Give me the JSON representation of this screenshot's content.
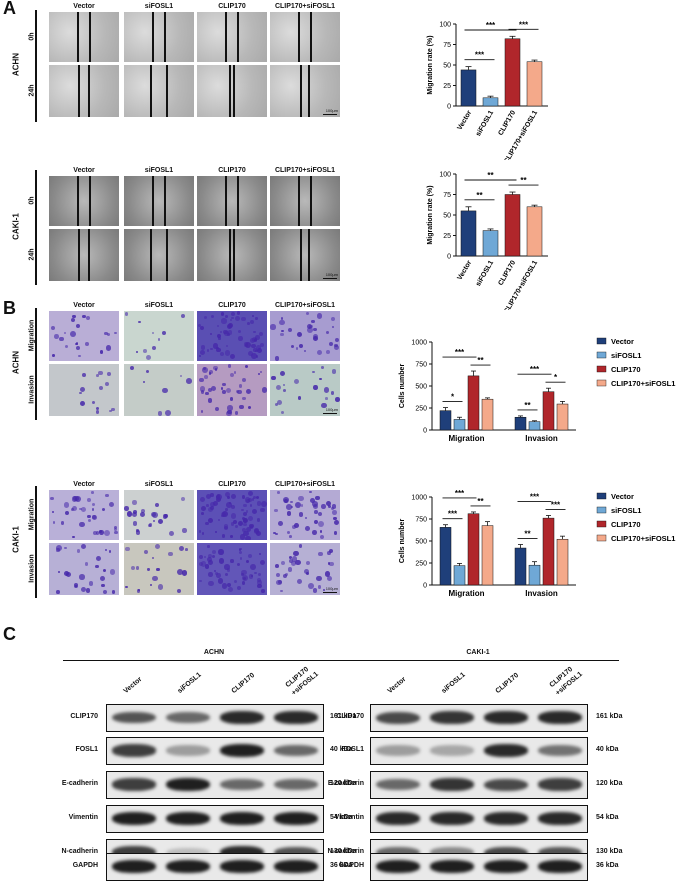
{
  "panels": {
    "A": {
      "letter": "A",
      "columns": [
        "Vector",
        "siFOSL1",
        "CLIP170",
        "CLIP170+siFOSL1"
      ],
      "time_rows": [
        "0h",
        "24h"
      ],
      "cell_lines": [
        "ACHN",
        "CAKI-1"
      ],
      "scale": "100μm"
    },
    "B": {
      "letter": "B",
      "columns": [
        "Vector",
        "siFOSL1",
        "CLIP170",
        "CLIP170+siFOSL1"
      ],
      "assay_rows": [
        "Migration",
        "Invasion"
      ],
      "cell_lines": [
        "ACHN",
        "CAKI-1"
      ],
      "scale": "100μm"
    },
    "C": {
      "letter": "C",
      "cell_lines": [
        "ACHN",
        "CAKI-1"
      ],
      "lanes": [
        "Vector",
        "siFOSL1",
        "CLIP170",
        "CLIP170\n+siFOSL1"
      ],
      "lane_line1": [
        "Vector",
        "siFOSL1",
        "CLIP170",
        "CLIP170"
      ],
      "lane_line2": [
        "",
        "",
        "",
        "+siFOSL1"
      ],
      "proteins": [
        {
          "name": "CLIP170",
          "kda": "161 kDa"
        },
        {
          "name": "FOSL1",
          "kda": "40 kDa"
        },
        {
          "name": "E-cadherin",
          "kda": "120 kDa"
        },
        {
          "name": "Vimentin",
          "kda": "54 kDa"
        },
        {
          "name": "N-cadherin",
          "kda": "130 kDa"
        },
        {
          "name": "GAPDH",
          "kda": "36 kDa"
        }
      ]
    }
  },
  "chart_data": [
    {
      "type": "bar",
      "panel": "A-ACHN",
      "categories": [
        "Vector",
        "siFOSL1",
        "CLIP170",
        "CLIP170+siFOSL1"
      ],
      "values": [
        44,
        10,
        82,
        54
      ],
      "errors": [
        4,
        2,
        3,
        2
      ],
      "ylabel": "Migration rate (%)",
      "ylim": [
        0,
        100
      ],
      "yticks": [
        0,
        25,
        50,
        75,
        100
      ],
      "colors": [
        "#1f3f7a",
        "#6fa8d6",
        "#b0262b",
        "#f4a98a"
      ],
      "significance": [
        {
          "from": 0,
          "to": 1,
          "label": "***",
          "level": 1
        },
        {
          "from": 2,
          "to": 3,
          "label": "***",
          "level": 1
        },
        {
          "from": 0,
          "to": 2,
          "label": "***",
          "level": 2
        }
      ]
    },
    {
      "type": "bar",
      "panel": "A-CAKI-1",
      "categories": [
        "Vector",
        "siFOSL1",
        "CLIP170",
        "CLIP170+siFOSL1"
      ],
      "values": [
        55,
        31,
        75,
        60
      ],
      "errors": [
        5,
        2,
        3,
        2
      ],
      "ylabel": "Migration rate (%)",
      "ylim": [
        0,
        100
      ],
      "yticks": [
        0,
        25,
        50,
        75,
        100
      ],
      "colors": [
        "#1f3f7a",
        "#6fa8d6",
        "#b0262b",
        "#f4a98a"
      ],
      "significance": [
        {
          "from": 0,
          "to": 1,
          "label": "**",
          "level": 1
        },
        {
          "from": 2,
          "to": 3,
          "label": "**",
          "level": 1
        },
        {
          "from": 0,
          "to": 2,
          "label": "**",
          "level": 2
        }
      ]
    },
    {
      "type": "bar",
      "panel": "B-ACHN",
      "categories": [
        "Migration",
        "Invasion"
      ],
      "series": [
        {
          "name": "Vector",
          "values": [
            220,
            145
          ],
          "errors": [
            35,
            15
          ],
          "color": "#1f3f7a"
        },
        {
          "name": "siFOSL1",
          "values": [
            120,
            95
          ],
          "errors": [
            25,
            10
          ],
          "color": "#6fa8d6"
        },
        {
          "name": "CLIP170",
          "values": [
            615,
            435
          ],
          "errors": [
            55,
            40
          ],
          "color": "#b0262b"
        },
        {
          "name": "CLIP170+siFOSL1",
          "values": [
            350,
            295
          ],
          "errors": [
            15,
            30
          ],
          "color": "#f4a98a"
        }
      ],
      "ylabel": "Cells number",
      "ylim": [
        0,
        1000
      ],
      "yticks": [
        0,
        250,
        500,
        750,
        1000
      ],
      "legend": "top-right",
      "significance": [
        {
          "group": 0,
          "from": 0,
          "to": 1,
          "label": "*",
          "level": 1
        },
        {
          "group": 0,
          "from": 2,
          "to": 3,
          "label": "**",
          "level": 1
        },
        {
          "group": 0,
          "from": 0,
          "to": 2,
          "label": "***",
          "level": 2
        },
        {
          "group": 1,
          "from": 0,
          "to": 1,
          "label": "**",
          "level": 1
        },
        {
          "group": 1,
          "from": 2,
          "to": 3,
          "label": "*",
          "level": 1
        },
        {
          "group": 1,
          "from": 0,
          "to": 2,
          "label": "***",
          "level": 2
        }
      ]
    },
    {
      "type": "bar",
      "panel": "B-CAKI-1",
      "categories": [
        "Migration",
        "Invasion"
      ],
      "series": [
        {
          "name": "Vector",
          "values": [
            655,
            420
          ],
          "errors": [
            30,
            40
          ],
          "color": "#1f3f7a"
        },
        {
          "name": "siFOSL1",
          "values": [
            220,
            225
          ],
          "errors": [
            25,
            40
          ],
          "color": "#6fa8d6"
        },
        {
          "name": "CLIP170",
          "values": [
            810,
            760
          ],
          "errors": [
            20,
            30
          ],
          "color": "#b0262b"
        },
        {
          "name": "CLIP170+siFOSL1",
          "values": [
            675,
            520
          ],
          "errors": [
            45,
            35
          ],
          "color": "#f4a98a"
        }
      ],
      "ylabel": "Cells number",
      "ylim": [
        0,
        1000
      ],
      "yticks": [
        0,
        250,
        500,
        750,
        1000
      ],
      "legend": "top-right",
      "significance": [
        {
          "group": 0,
          "from": 0,
          "to": 1,
          "label": "***",
          "level": 1
        },
        {
          "group": 0,
          "from": 2,
          "to": 3,
          "label": "**",
          "level": 1
        },
        {
          "group": 0,
          "from": 0,
          "to": 2,
          "label": "***",
          "level": 2
        },
        {
          "group": 1,
          "from": 0,
          "to": 1,
          "label": "**",
          "level": 1
        },
        {
          "group": 1,
          "from": 2,
          "to": 3,
          "label": "***",
          "level": 1
        },
        {
          "group": 1,
          "from": 0,
          "to": 2,
          "label": "***",
          "level": 2
        }
      ]
    }
  ]
}
